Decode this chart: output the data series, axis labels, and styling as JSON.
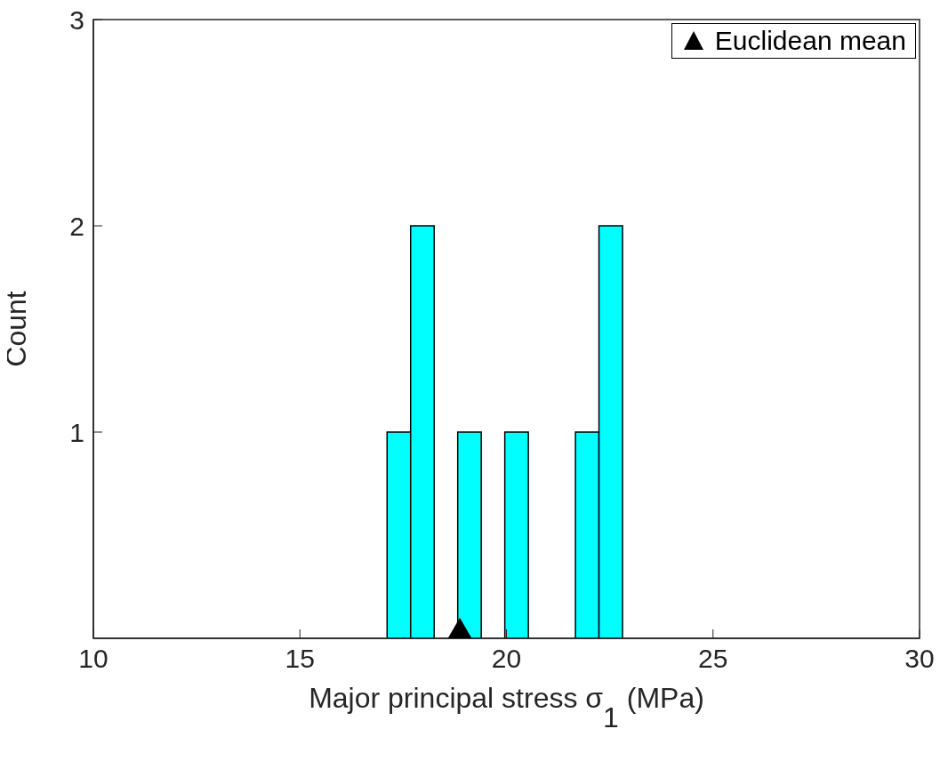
{
  "chart_data": {
    "type": "histogram",
    "xlabel": "Major principal stress σ$_{1}$ (MPa)",
    "ylabel": "Count",
    "bins": [
      17.11,
      17.68,
      18.25,
      18.82,
      19.39,
      19.96,
      20.53,
      21.1,
      21.67,
      22.24,
      22.81
    ],
    "values": [
      1,
      2,
      0,
      1,
      0,
      1,
      0,
      0,
      1,
      2
    ],
    "color": "#00ffff",
    "series": [
      {
        "type": "scatter",
        "name": "Euclidean mean",
        "color": "#000000",
        "x": [
          18.87
        ],
        "values": [
          0
        ],
        "marker": "triangle"
      }
    ],
    "xlim": [
      10,
      30
    ],
    "xticks": [
      10,
      15,
      20,
      25,
      30
    ],
    "ylim": [
      0,
      3
    ],
    "yticks": [
      1,
      2,
      3
    ],
    "grid": false,
    "legend": "top right"
  }
}
